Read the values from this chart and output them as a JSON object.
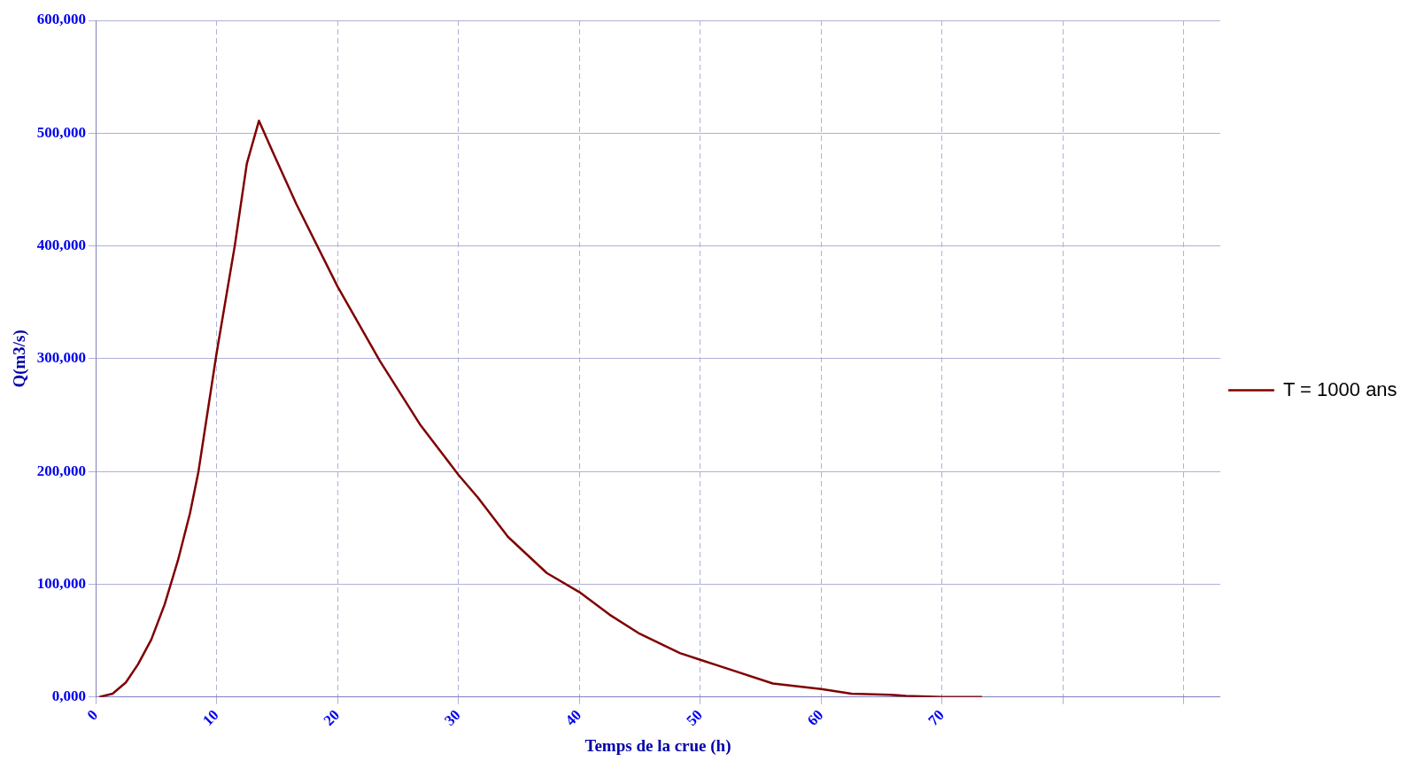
{
  "chart_data": {
    "type": "line",
    "xlabel": "Temps de la crue (h)",
    "ylabel": "Q(m3/s)",
    "xlim": [
      0,
      93
    ],
    "xticks": [
      0,
      10,
      20,
      30,
      40,
      50,
      60,
      70,
      {
        "value": 80,
        "label": null
      },
      {
        "value": 90,
        "label": null
      }
    ],
    "ylim": [
      0,
      600000
    ],
    "yticks": [
      {
        "value": 0,
        "label": "0,000"
      },
      {
        "value": 100000,
        "label": "100,000"
      },
      {
        "value": 200000,
        "label": "200,000"
      },
      {
        "value": 300000,
        "label": "300,000"
      },
      {
        "value": 400000,
        "label": "400,000"
      },
      {
        "value": 500000,
        "label": "500,000"
      },
      {
        "value": 600000,
        "label": "600,000"
      }
    ],
    "grid": true,
    "legend": "right",
    "marker": "none",
    "line_style": "solid",
    "series": [
      {
        "name": "T = 1000 ans",
        "color": "#800000",
        "x": [
          0.3,
          1.4,
          2.5,
          3.5,
          4.6,
          5.7,
          6.8,
          7.8,
          8.5,
          10,
          11.5,
          12.5,
          13.5,
          14.7,
          16.6,
          20,
          23.5,
          26.8,
          30,
          31.6,
          34.1,
          37.3,
          40,
          42.5,
          45,
          48.3,
          50,
          52,
          56,
          60,
          62.5,
          65.7,
          67,
          70,
          73.3
        ],
        "values": [
          0,
          3000,
          13000,
          29000,
          51000,
          82000,
          121000,
          163000,
          200000,
          305000,
          400000,
          473000,
          511000,
          482000,
          437000,
          364000,
          298000,
          242000,
          197000,
          177000,
          142000,
          110000,
          93000,
          73000,
          56000,
          39000,
          33000,
          26000,
          12000,
          7000,
          3000,
          2000,
          1000,
          0,
          0
        ]
      }
    ]
  }
}
